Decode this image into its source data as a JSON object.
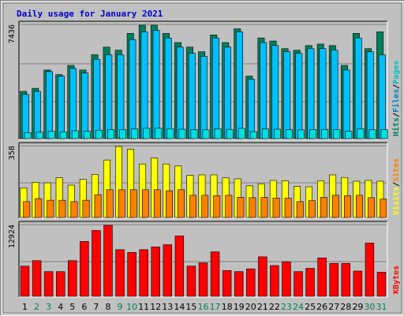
{
  "chart_data": {
    "type": "bar",
    "title": "Daily usage for January 2021",
    "categories": [
      "1",
      "2",
      "3",
      "4",
      "5",
      "6",
      "7",
      "8",
      "9",
      "10",
      "11",
      "12",
      "13",
      "14",
      "15",
      "16",
      "17",
      "18",
      "19",
      "20",
      "21",
      "22",
      "23",
      "24",
      "25",
      "26",
      "27",
      "28",
      "29",
      "30",
      "31"
    ],
    "weekend_days": [
      "2",
      "3",
      "9",
      "10",
      "16",
      "17",
      "23",
      "24",
      "30",
      "31"
    ],
    "colors": {
      "background": "#c0c0c0",
      "plot_bg": "#c0c0c0",
      "gridline": "#808080",
      "hits": "#00805c",
      "files": "#00c0ff",
      "pages": "#00e0e0",
      "visits": "#ffff00",
      "sites": "#ff8000",
      "kbytes": "#ff0000",
      "title": "#0000c8",
      "weekday_label": "#000000",
      "weekend_label": "#00805c"
    },
    "panels": [
      {
        "name": "hits-files-pages",
        "max_label": "7436",
        "ymax": 7436,
        "legend": [
          {
            "text": "Hits",
            "color": "#00805c"
          },
          {
            "text": "/",
            "color": "#000000"
          },
          {
            "text": "Files",
            "color": "#0080c0"
          },
          {
            "text": "/",
            "color": "#000000"
          },
          {
            "text": "Pages",
            "color": "#00c0c0"
          }
        ],
        "series": [
          {
            "name": "Hits",
            "color": "#00805c",
            "values": [
              3100,
              3300,
              4500,
              4200,
              4800,
              4500,
              5500,
              6000,
              5800,
              6900,
              7436,
              7436,
              6900,
              6300,
              6000,
              5700,
              6800,
              6300,
              7200,
              4100,
              6600,
              6400,
              5900,
              5800,
              6100,
              6200,
              6100,
              4800,
              6900,
              5900,
              7000
            ]
          },
          {
            "name": "Files",
            "color": "#00c0ff",
            "values": [
              2900,
              3100,
              4400,
              4100,
              4600,
              4300,
              5200,
              5500,
              5500,
              6500,
              7000,
              7100,
              6600,
              6000,
              5600,
              5400,
              6600,
              6000,
              7000,
              3900,
              6300,
              6100,
              5700,
              5600,
              5900,
              5900,
              5800,
              4500,
              6600,
              5700,
              5500
            ]
          },
          {
            "name": "Pages",
            "color": "#00e0e0",
            "values": [
              400,
              420,
              480,
              450,
              520,
              480,
              560,
              600,
              590,
              640,
              680,
              690,
              660,
              620,
              600,
              580,
              650,
              610,
              680,
              460,
              640,
              620,
              590,
              580,
              600,
              610,
              600,
              490,
              650,
              590,
              600
            ]
          }
        ]
      },
      {
        "name": "visits-sites",
        "max_label": "358",
        "ymax": 358,
        "legend": [
          {
            "text": "Visits",
            "color": "#ffff00"
          },
          {
            "text": "/",
            "color": "#000000"
          },
          {
            "text": "Sites",
            "color": "#ff8000"
          }
        ],
        "series": [
          {
            "name": "Visits",
            "color": "#ffff00",
            "values": [
              150,
              178,
              175,
              200,
              163,
              192,
              217,
              290,
              358,
              345,
              270,
              300,
              270,
              260,
              213,
              215,
              215,
              200,
              195,
              160,
              170,
              187,
              185,
              157,
              155,
              185,
              215,
              202,
              183,
              187,
              183
            ]
          },
          {
            "name": "Sites",
            "color": "#ff8000",
            "values": [
              80,
              95,
              87,
              87,
              80,
              87,
              115,
              140,
              140,
              140,
              140,
              140,
              135,
              140,
              112,
              112,
              110,
              112,
              102,
              100,
              102,
              98,
              97,
              80,
              85,
              102,
              112,
              110,
              112,
              100,
              93
            ]
          }
        ]
      },
      {
        "name": "kbytes",
        "max_label": "12924",
        "ymax": 12924,
        "legend": [
          {
            "text": "KBytes",
            "color": "#ff0000"
          }
        ],
        "series": [
          {
            "name": "KBytes",
            "color": "#ff0000",
            "values": [
              5500,
              6500,
              4500,
              4500,
              6500,
              10000,
              12000,
              12924,
              8500,
              8000,
              8500,
              9000,
              9400,
              11000,
              5500,
              6100,
              8100,
              4700,
              4500,
              5000,
              7200,
              5600,
              6300,
              4500,
              5100,
              7000,
              6000,
              6000,
              4600,
              9700,
              4400
            ]
          }
        ]
      }
    ]
  }
}
